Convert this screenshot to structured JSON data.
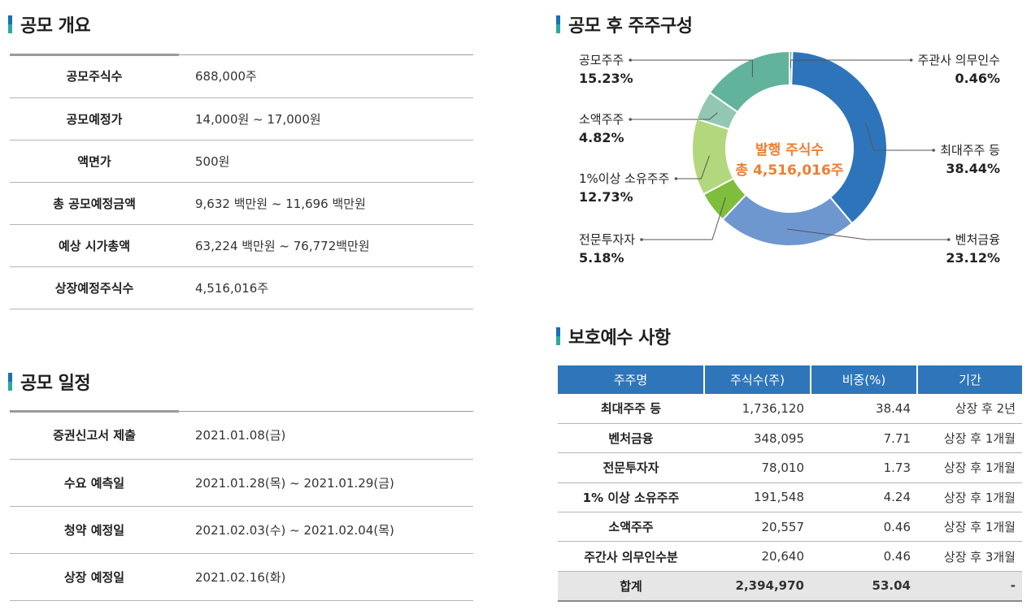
{
  "overview": {
    "title": "공모 개요",
    "rows": [
      {
        "label": "공모주식수",
        "value": "688,000주"
      },
      {
        "label": "공모예정가",
        "value": "14,000원 ~ 17,000원"
      },
      {
        "label": "액면가",
        "value": "500원"
      },
      {
        "label": "총 공모예정금액",
        "value": "9,632 백만원 ~ 11,696 백만원"
      },
      {
        "label": "예상 시가총액",
        "value": "63,224 백만원 ~ 76,772백만원"
      },
      {
        "label": "상장예정주식수",
        "value": "4,516,016주"
      }
    ]
  },
  "schedule": {
    "title": "공모 일정",
    "rows": [
      {
        "label": "증권신고서 제출",
        "value": "2021.01.08(금)"
      },
      {
        "label": "수요 예측일",
        "value": "2021.01.28(목) ~ 2021.01.29(금)"
      },
      {
        "label": "청약 예정일",
        "value": "2021.02.03(수) ~ 2021.02.04(목)"
      },
      {
        "label": "상장 예정일",
        "value": "2021.02.16(화)"
      }
    ]
  },
  "shareholders": {
    "title": "공모 후 주주구성",
    "center_line1": "발행 주식수",
    "center_line2": "총 4,516,016주"
  },
  "chart_data": {
    "type": "pie",
    "title": "공모 후 주주구성",
    "donut": true,
    "segments": [
      {
        "name": "주관사 의무인수",
        "label": "0.46%",
        "value": 0.46,
        "color": "#5fa9a0",
        "side": "right"
      },
      {
        "name": "최대주주 등",
        "label": "38.44%",
        "value": 38.44,
        "color": "#2e74bb",
        "side": "right"
      },
      {
        "name": "벤처금융",
        "label": "23.12%",
        "value": 23.12,
        "color": "#6e97d0",
        "side": "right"
      },
      {
        "name": "전문투자자",
        "label": "5.18%",
        "value": 5.18,
        "color": "#7fbd3c",
        "side": "left"
      },
      {
        "name": "1%이상 소유주주",
        "label": "12.73%",
        "value": 12.73,
        "color": "#b3d77c",
        "side": "left"
      },
      {
        "name": "소액주주",
        "label": "4.82%",
        "value": 4.82,
        "color": "#92c8b3",
        "side": "left"
      },
      {
        "name": "공모주주",
        "label": "15.23%",
        "value": 15.23,
        "color": "#62b39b",
        "side": "left"
      }
    ]
  },
  "lockup": {
    "title": "보호예수 사항",
    "headers": [
      "주주명",
      "주식수(주)",
      "비중(%)",
      "기간"
    ],
    "rows": [
      [
        "최대주주 등",
        "1,736,120",
        "38.44",
        "상장 후 2년"
      ],
      [
        "벤처금융",
        "348,095",
        "7.71",
        "상장 후 1개월"
      ],
      [
        "전문투자자",
        "78,010",
        "1.73",
        "상장 후 1개월"
      ],
      [
        "1% 이상 소유주주",
        "191,548",
        "4.24",
        "상장 후 1개월"
      ],
      [
        "소액주주",
        "20,557",
        "0.46",
        "상장 후 1개월"
      ],
      [
        "주간사 의무인수분",
        "20,640",
        "0.46",
        "상장 후 3개월"
      ]
    ],
    "total": [
      "합계",
      "2,394,970",
      "53.04",
      "-"
    ]
  }
}
